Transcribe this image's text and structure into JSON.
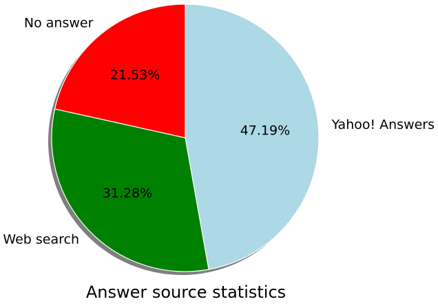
{
  "chart_data": {
    "type": "pie",
    "title": "Answer source statistics",
    "shadow": true,
    "start_angle_deg": 90,
    "direction": "clockwise",
    "slices": [
      {
        "label": "Yahoo! Answers",
        "value": 47.19,
        "value_label": "47.19%",
        "color": "#add8e6"
      },
      {
        "label": "Web search",
        "value": 31.28,
        "value_label": "31.28%",
        "color": "#008000"
      },
      {
        "label": "No answer",
        "value": 21.53,
        "value_label": "21.53%",
        "color": "#ff0000"
      }
    ]
  }
}
